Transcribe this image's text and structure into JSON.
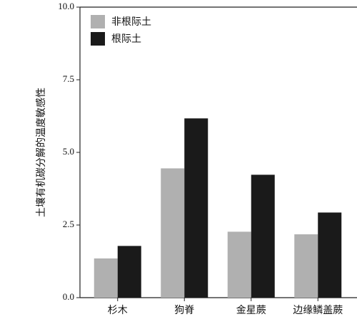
{
  "chart_data": {
    "type": "bar",
    "y_label": "土壤有机碳分解的温度敏感性",
    "categories": [
      "杉木",
      "狗脊",
      "金星蕨",
      "边缘鳞盖蕨"
    ],
    "series": [
      {
        "name": "非根际土",
        "color": "#b0b0b0",
        "values": [
          1.35,
          4.45,
          2.27,
          2.18
        ]
      },
      {
        "name": "根际土",
        "color": "#1a1a1a",
        "values": [
          1.78,
          6.17,
          4.23,
          2.93
        ]
      }
    ],
    "ylim": [
      0,
      10
    ],
    "yticks": [
      {
        "value": 0,
        "label": "0.0"
      },
      {
        "value": 2.5,
        "label": "2.5"
      },
      {
        "value": 5,
        "label": "5.0"
      },
      {
        "value": 7.5,
        "label": "7.5"
      },
      {
        "value": 10,
        "label": "10.0"
      }
    ],
    "legend": "upper left"
  }
}
